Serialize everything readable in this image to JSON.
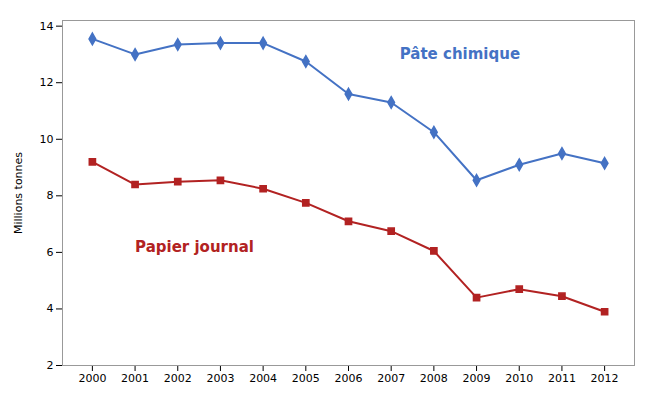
{
  "chart_data": {
    "type": "line",
    "x": [
      2000,
      2001,
      2002,
      2003,
      2004,
      2005,
      2006,
      2007,
      2008,
      2009,
      2010,
      2011,
      2012
    ],
    "series": [
      {
        "name": "Pâte chimique",
        "color": "#4472C4",
        "marker": "diamond",
        "values": [
          13.55,
          13.0,
          13.35,
          13.4,
          13.4,
          12.75,
          11.6,
          11.3,
          10.25,
          8.55,
          9.1,
          9.5,
          9.15
        ]
      },
      {
        "name": "Papier journal",
        "color": "#B22222",
        "marker": "square",
        "values": [
          9.2,
          8.4,
          8.5,
          8.55,
          8.25,
          7.75,
          7.1,
          6.75,
          6.05,
          4.4,
          4.7,
          4.45,
          3.9
        ]
      }
    ],
    "ylabel": "Millions tonnes",
    "xlim": [
      1999.3,
      2012.7
    ],
    "xticks": [
      2000,
      2001,
      2002,
      2003,
      2004,
      2005,
      2006,
      2007,
      2008,
      2009,
      2010,
      2011,
      2012
    ],
    "ylim": [
      2,
      14.2
    ],
    "yticks": [
      2,
      4,
      6,
      8,
      10,
      12,
      14
    ],
    "annotations": [
      {
        "text": "Pâte chimique",
        "x": 2007.2,
        "y": 13.0,
        "color": "#4472C4"
      },
      {
        "text": "Papier journal",
        "x": 2001.0,
        "y": 6.2,
        "color": "#B22222"
      }
    ],
    "grid": false
  }
}
